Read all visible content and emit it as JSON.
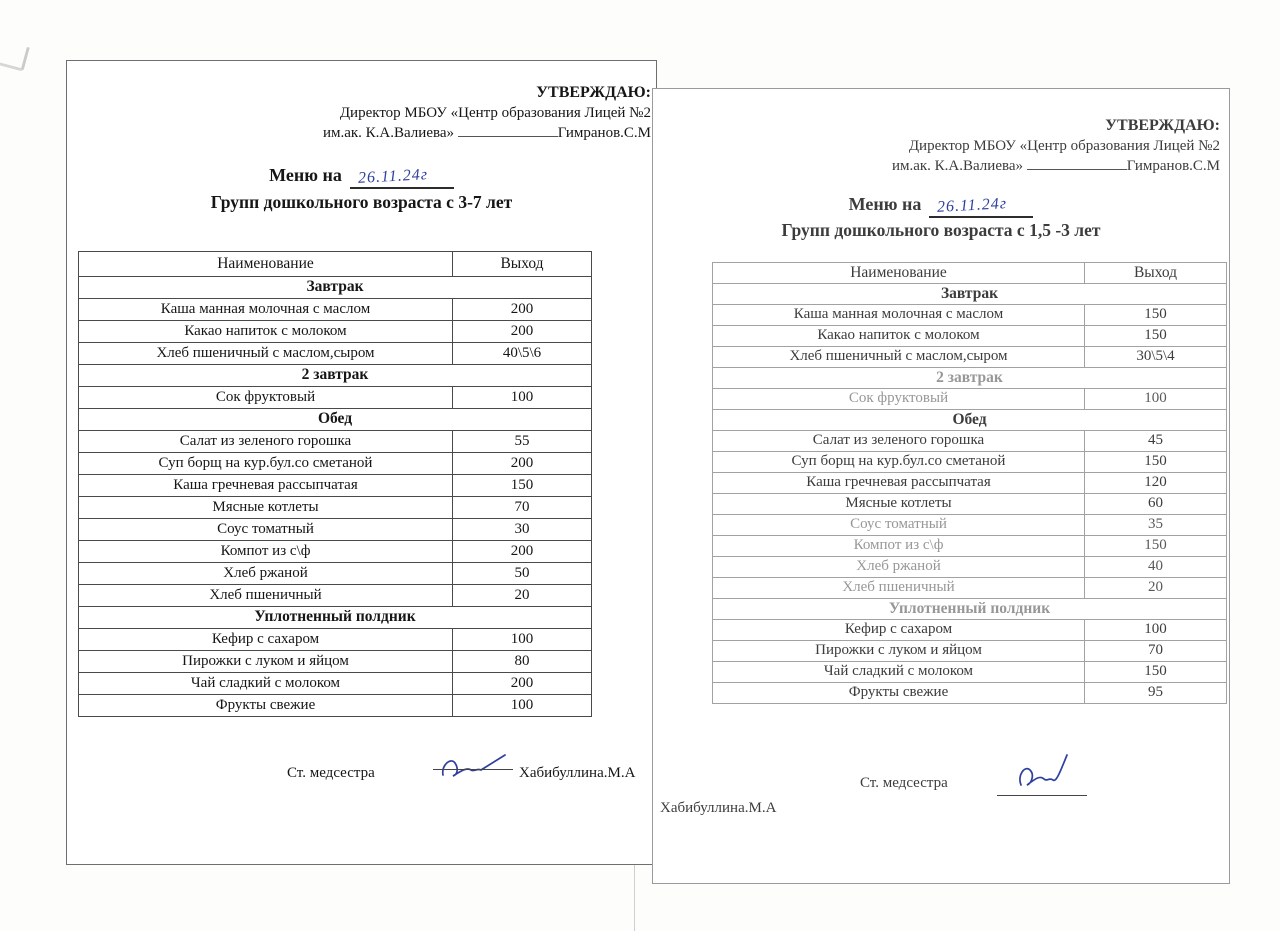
{
  "handwriting_ink_color": "#2e3f9e",
  "paper_color": "#ffffff",
  "pages": [
    {
      "side": "left",
      "approve": {
        "heading": "УТВЕРЖДАЮ:",
        "line2": "Директор МБОУ «Центр образования Лицей №2",
        "line3_prefix": "им.ак. К.А.Валиева»",
        "line3_name": "Гимранов.С.М"
      },
      "menu_title_prefix": "Меню на",
      "handwritten_date": "26.11.24г",
      "subtitle": "Групп дошкольного возраста с 3-7 лет",
      "table": {
        "headers": [
          "Наименование",
          "Выход"
        ],
        "rows": [
          {
            "type": "section",
            "label": "Завтрак"
          },
          {
            "type": "item",
            "name": "Каша манная молочная с маслом",
            "value": "200"
          },
          {
            "type": "item",
            "name": "Какао напиток с молоком",
            "value": "200"
          },
          {
            "type": "item",
            "name": "Хлеб пшеничный с маслом,сыром",
            "value": "40\\5\\6"
          },
          {
            "type": "section",
            "label": "2 завтрак"
          },
          {
            "type": "item",
            "name": "Сок фруктовый",
            "value": "100"
          },
          {
            "type": "section",
            "label": "Обед"
          },
          {
            "type": "item",
            "name": "Салат из зеленого горошка",
            "value": "55"
          },
          {
            "type": "item",
            "name": "Суп борщ на кур.бул.со сметаной",
            "value": "200"
          },
          {
            "type": "item",
            "name": "Каша гречневая рассыпчатая",
            "value": "150"
          },
          {
            "type": "item",
            "name": "Мясные котлеты",
            "value": "70"
          },
          {
            "type": "item",
            "name": "Соус томатный",
            "value": "30"
          },
          {
            "type": "item",
            "name": "Компот из с\\ф",
            "value": "200"
          },
          {
            "type": "item",
            "name": "Хлеб ржаной",
            "value": "50"
          },
          {
            "type": "item",
            "name": "Хлеб пшеничный",
            "value": "20"
          },
          {
            "type": "section",
            "label": "Уплотненный полдник"
          },
          {
            "type": "item",
            "name": "Кефир с сахаром",
            "value": "100"
          },
          {
            "type": "item",
            "name": "Пирожки с луком и яйцом",
            "value": "80"
          },
          {
            "type": "item",
            "name": "Чай сладкий с молоком",
            "value": "200"
          },
          {
            "type": "item",
            "name": "Фрукты свежие",
            "value": "100"
          }
        ]
      },
      "footer": {
        "role_label": "Ст. медсестра",
        "signed_name": "Хабибуллина.М.А"
      }
    },
    {
      "side": "right",
      "approve": {
        "heading": "УТВЕРЖДАЮ:",
        "line2": "Директор МБОУ «Центр образования Лицей №2",
        "line3_prefix": "им.ак. К.А.Валиева»",
        "line3_name": "Гимранов.С.М"
      },
      "menu_title_prefix": "Меню на",
      "handwritten_date": "26.11.24г",
      "subtitle": "Групп дошкольного возраста с 1,5 -3 лет",
      "table": {
        "headers": [
          "Наименование",
          "Выход"
        ],
        "rows": [
          {
            "type": "section",
            "label": "Завтрак"
          },
          {
            "type": "item",
            "name": "Каша манная молочная с маслом",
            "value": "150"
          },
          {
            "type": "item",
            "name": "Какао напиток с молоком",
            "value": "150"
          },
          {
            "type": "item",
            "name": "Хлеб пшеничный с маслом,сыром",
            "value": "30\\5\\4"
          },
          {
            "type": "section",
            "label": "2 завтрак",
            "faded": true
          },
          {
            "type": "item",
            "name": "Сок фруктовый",
            "value": "100",
            "faded": true
          },
          {
            "type": "section",
            "label": "Обед"
          },
          {
            "type": "item",
            "name": "Салат из зеленого горошка",
            "value": "45"
          },
          {
            "type": "item",
            "name": "Суп борщ на кур.бул.со сметаной",
            "value": "150"
          },
          {
            "type": "item",
            "name": "Каша гречневая рассыпчатая",
            "value": "120"
          },
          {
            "type": "item",
            "name": "Мясные котлеты",
            "value": "60"
          },
          {
            "type": "item",
            "name": "Соус томатный",
            "value": "35",
            "faded": true
          },
          {
            "type": "item",
            "name": "Компот из с\\ф",
            "value": "150",
            "faded": true
          },
          {
            "type": "item",
            "name": "Хлеб ржаной",
            "value": "40",
            "faded": true
          },
          {
            "type": "item",
            "name": "Хлеб пшеничный",
            "value": "20",
            "faded": true
          },
          {
            "type": "section",
            "label": "Уплотненный полдник",
            "faded": true
          },
          {
            "type": "item",
            "name": "Кефир с сахаром",
            "value": "100"
          },
          {
            "type": "item",
            "name": "Пирожки с луком и яйцом",
            "value": "70"
          },
          {
            "type": "item",
            "name": "Чай сладкий с молоком",
            "value": "150"
          },
          {
            "type": "item",
            "name": "Фрукты свежие",
            "value": "95"
          }
        ]
      },
      "footer": {
        "role_label": "Ст. медсестра",
        "signed_name": "Хабибуллина.М.А"
      }
    }
  ]
}
